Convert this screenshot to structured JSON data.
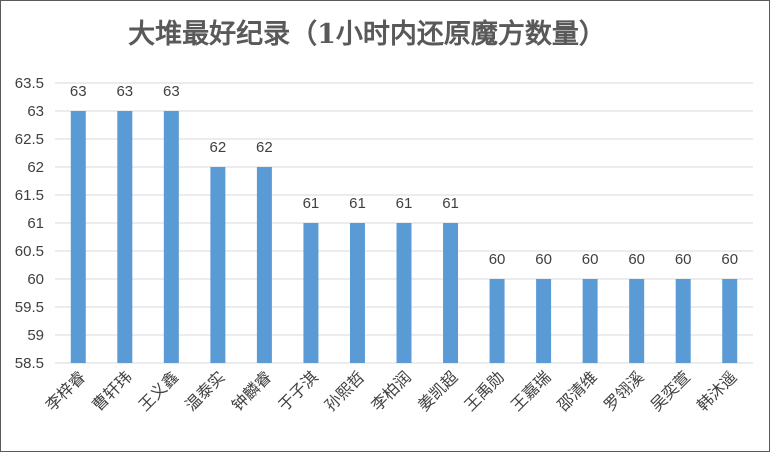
{
  "chart_data": {
    "type": "bar",
    "title": "大堆最好纪录（1小时内还原魔方数量）",
    "categories": [
      "李梓睿",
      "曹轩玮",
      "王义鑫",
      "温泰实",
      "钟麟睿",
      "于子淇",
      "孙熙哲",
      "李柏润",
      "姜凯超",
      "王禹勋",
      "王嘉瑞",
      "邵清维",
      "罗翎溪",
      "吴奕萱",
      "韩沐遥"
    ],
    "values": [
      63,
      63,
      63,
      62,
      62,
      61,
      61,
      61,
      61,
      60,
      60,
      60,
      60,
      60,
      60
    ],
    "data_labels": [
      "63",
      "63",
      "63",
      "62",
      "62",
      "61",
      "61",
      "61",
      "61",
      "60",
      "60",
      "60",
      "60",
      "60",
      "60"
    ],
    "ylim": [
      58.5,
      63.5
    ],
    "yticks": [
      "58.5",
      "59",
      "59.5",
      "60",
      "60.5",
      "61",
      "61.5",
      "62",
      "62.5",
      "63",
      "63.5"
    ],
    "xlabel": "",
    "ylabel": "",
    "grid": true,
    "legend": "none",
    "bar_color": "#5b9bd5",
    "grid_color": "#d9d9d9",
    "text_color": "#404040",
    "title_color": "#595959"
  }
}
